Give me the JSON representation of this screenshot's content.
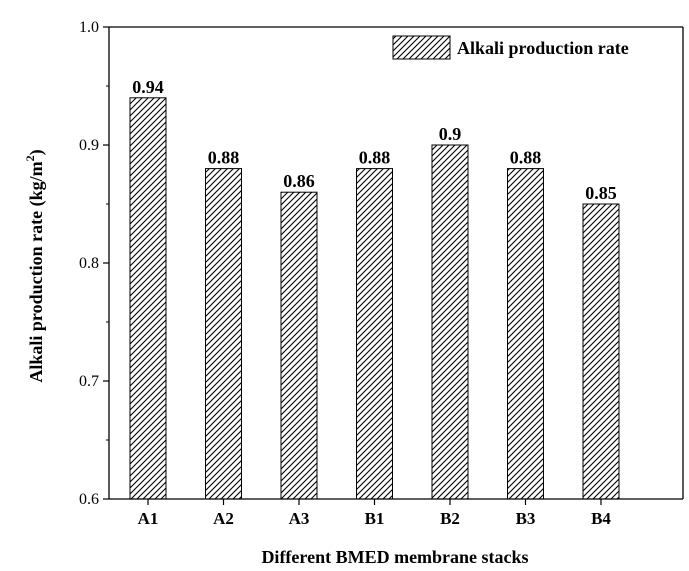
{
  "chart_data": {
    "type": "bar",
    "categories": [
      "A1",
      "A2",
      "A3",
      "B1",
      "B2",
      "B3",
      "B4"
    ],
    "series": [
      {
        "name": "Alkali production rate",
        "values": [
          0.94,
          0.88,
          0.86,
          0.88,
          0.9,
          0.88,
          0.85
        ]
      }
    ],
    "data_labels": [
      "0.94",
      "0.88",
      "0.86",
      "0.88",
      "0.9",
      "0.88",
      "0.85"
    ],
    "xlabel": "Different BMED membrane stacks",
    "ylabel": "Alkali production rate (kg/m",
    "ylabel_superscript": "2",
    "ylabel_suffix": ")",
    "ylim": [
      0.6,
      1.0
    ],
    "yticks": [
      0.6,
      0.7,
      0.8,
      0.9,
      1.0
    ],
    "ytick_labels": [
      "0.6",
      "0.7",
      "0.8",
      "0.9",
      "1.0"
    ],
    "legend_position": "top-right",
    "grid": false,
    "bar_fill": "diagonal-hatch",
    "colors": {
      "axis": "#000000",
      "bar_stroke": "#000000",
      "hatch": "#000000"
    }
  }
}
